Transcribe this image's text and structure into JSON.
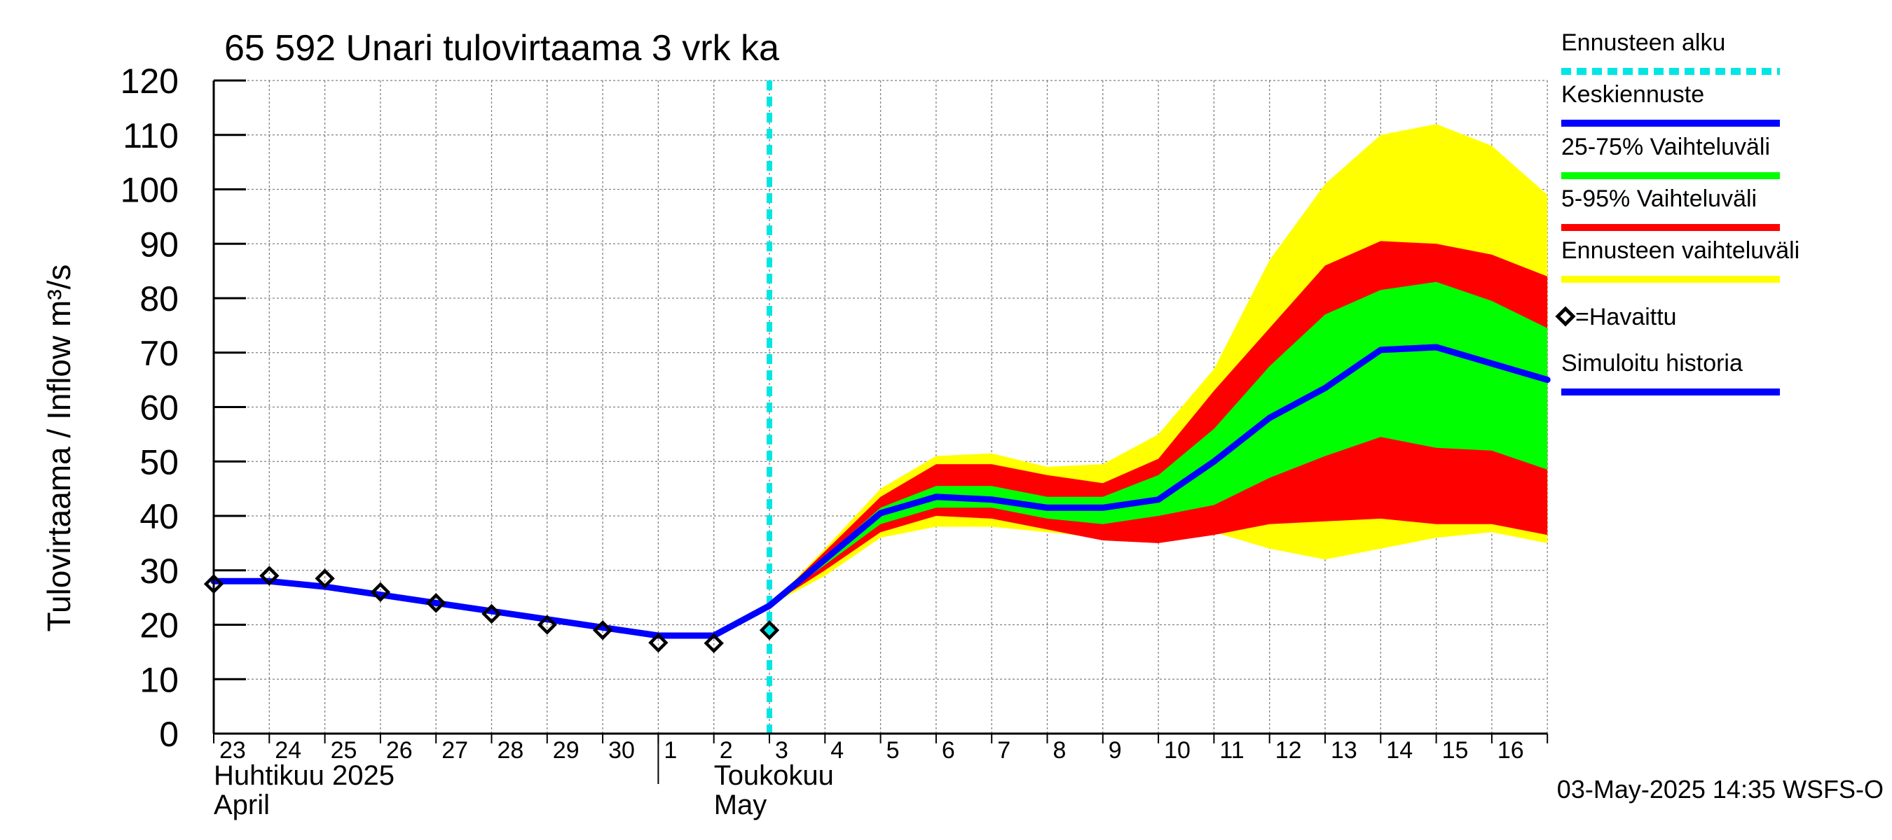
{
  "chart_data": {
    "type": "area",
    "title": "65 592 Unari tulovirtaama 3 vrk ka",
    "ylabel": "Tulovirtaama / Inflow    m³/s",
    "ylim": [
      0,
      120
    ],
    "yticks": [
      0,
      10,
      20,
      30,
      40,
      50,
      60,
      70,
      80,
      90,
      100,
      110,
      120
    ],
    "x_start_date": "2025-04-23",
    "x_end_date": "2025-05-17",
    "day_labels": [
      {
        "date": "2025-04-23",
        "label": "23"
      },
      {
        "date": "2025-04-24",
        "label": "24"
      },
      {
        "date": "2025-04-25",
        "label": "25"
      },
      {
        "date": "2025-04-26",
        "label": "26"
      },
      {
        "date": "2025-04-27",
        "label": "27"
      },
      {
        "date": "2025-04-28",
        "label": "28"
      },
      {
        "date": "2025-04-29",
        "label": "29"
      },
      {
        "date": "2025-04-30",
        "label": "30"
      },
      {
        "date": "2025-05-01",
        "label": "1"
      },
      {
        "date": "2025-05-02",
        "label": "2"
      },
      {
        "date": "2025-05-03",
        "label": "3"
      },
      {
        "date": "2025-05-04",
        "label": "4"
      },
      {
        "date": "2025-05-05",
        "label": "5"
      },
      {
        "date": "2025-05-06",
        "label": "6"
      },
      {
        "date": "2025-05-07",
        "label": "7"
      },
      {
        "date": "2025-05-08",
        "label": "8"
      },
      {
        "date": "2025-05-09",
        "label": "9"
      },
      {
        "date": "2025-05-10",
        "label": "10"
      },
      {
        "date": "2025-05-11",
        "label": "11"
      },
      {
        "date": "2025-05-12",
        "label": "12"
      },
      {
        "date": "2025-05-13",
        "label": "13"
      },
      {
        "date": "2025-05-14",
        "label": "14"
      },
      {
        "date": "2025-05-15",
        "label": "15"
      },
      {
        "date": "2025-05-16",
        "label": "16"
      }
    ],
    "month_labels": [
      {
        "date": "2025-04-23",
        "fi": "Huhtikuu  2025",
        "en": "April"
      },
      {
        "date": "2025-05-02",
        "fi": "Toukokuu",
        "en": "May"
      }
    ],
    "month_separator_date": "2025-05-01",
    "forecast_start_date": "2025-05-03",
    "forecast_x": [
      "2025-05-03",
      "2025-05-04",
      "2025-05-05",
      "2025-05-06",
      "2025-05-07",
      "2025-05-08",
      "2025-05-09",
      "2025-05-10",
      "2025-05-11",
      "2025-05-12",
      "2025-05-13",
      "2025-05-14",
      "2025-05-15",
      "2025-05-16",
      "2025-05-17"
    ],
    "series": [
      {
        "name": "Ennusteen vaihteluväli",
        "kind": "band",
        "color": "#ffff00",
        "low": [
          23.5,
          29,
          36,
          38,
          38,
          37,
          36,
          35,
          37,
          34,
          32,
          34,
          36,
          37,
          35
        ],
        "high": [
          23.5,
          34,
          45,
          51,
          51.5,
          49,
          49.5,
          55,
          67,
          87,
          101,
          110,
          112,
          108,
          99
        ]
      },
      {
        "name": "5-95% Vaihteluväli",
        "kind": "band",
        "color": "#ff0000",
        "low": [
          23.5,
          30,
          37,
          40,
          39.5,
          37.5,
          35.5,
          35,
          36.5,
          38.5,
          39,
          39.5,
          38.5,
          38.5,
          36.5
        ],
        "high": [
          23.5,
          33.5,
          43.5,
          49.5,
          49.5,
          47.5,
          46,
          50.5,
          63,
          74.5,
          86,
          90.5,
          90,
          88,
          84
        ]
      },
      {
        "name": "25-75% Vaihteluväli",
        "kind": "band",
        "color": "#00ff00",
        "low": [
          23.5,
          31,
          38.5,
          41.5,
          41.5,
          39.5,
          38.5,
          40,
          42,
          47,
          51,
          54.5,
          52.5,
          52,
          48.5
        ],
        "high": [
          23.5,
          32.5,
          41.5,
          45.5,
          45.5,
          43.5,
          43.5,
          47.5,
          56,
          67.5,
          77,
          81.5,
          83,
          79.5,
          74.5
        ]
      },
      {
        "name": "Keskiennuste",
        "kind": "line",
        "color": "#0000ff",
        "values": [
          23.5,
          32,
          40.5,
          43.5,
          43,
          41.5,
          41.5,
          43,
          50,
          58,
          63.5,
          70.5,
          71,
          68,
          65
        ]
      },
      {
        "name": "Simuloitu historia",
        "kind": "line",
        "color": "#0000ff",
        "x": [
          "2025-04-23",
          "2025-04-24",
          "2025-04-25",
          "2025-04-26",
          "2025-04-27",
          "2025-04-28",
          "2025-04-29",
          "2025-04-30",
          "2025-05-01",
          "2025-05-02",
          "2025-05-03"
        ],
        "values": [
          28,
          28,
          27,
          25.5,
          24,
          22.5,
          21,
          19.5,
          18,
          18,
          23.5
        ]
      },
      {
        "name": "=Havaittu",
        "kind": "markers",
        "color": "#000000",
        "x": [
          "2025-04-23",
          "2025-04-24",
          "2025-04-25",
          "2025-04-26",
          "2025-04-27",
          "2025-04-28",
          "2025-04-29",
          "2025-04-30",
          "2025-05-01",
          "2025-05-02",
          "2025-05-03"
        ],
        "values": [
          27.5,
          29,
          28.5,
          26,
          24,
          22,
          20,
          19,
          16.7,
          16.6,
          19
        ]
      }
    ],
    "legend": {
      "placement": "right",
      "items": [
        {
          "label": "Ennusteen alku",
          "style": "dashed",
          "color": "#00e5e5"
        },
        {
          "label": "Keskiennuste",
          "style": "line",
          "color": "#0000ff"
        },
        {
          "label": "25-75% Vaihteluväli",
          "style": "line",
          "color": "#00ff00"
        },
        {
          "label": "5-95% Vaihteluväli",
          "style": "line",
          "color": "#ff0000"
        },
        {
          "label": "Ennusteen vaihteluväli",
          "style": "line",
          "color": "#ffff00"
        },
        {
          "label": "=Havaittu",
          "style": "marker",
          "color": "#000000"
        },
        {
          "label": "Simuloitu historia",
          "style": "line",
          "color": "#0000ff"
        }
      ]
    },
    "footer": "03-May-2025 14:35 WSFS-O",
    "grid": true,
    "colors": {
      "forecast_start": "#00e5e5",
      "observed_last_fill": "#00e5e5",
      "grid": "#808080"
    }
  }
}
